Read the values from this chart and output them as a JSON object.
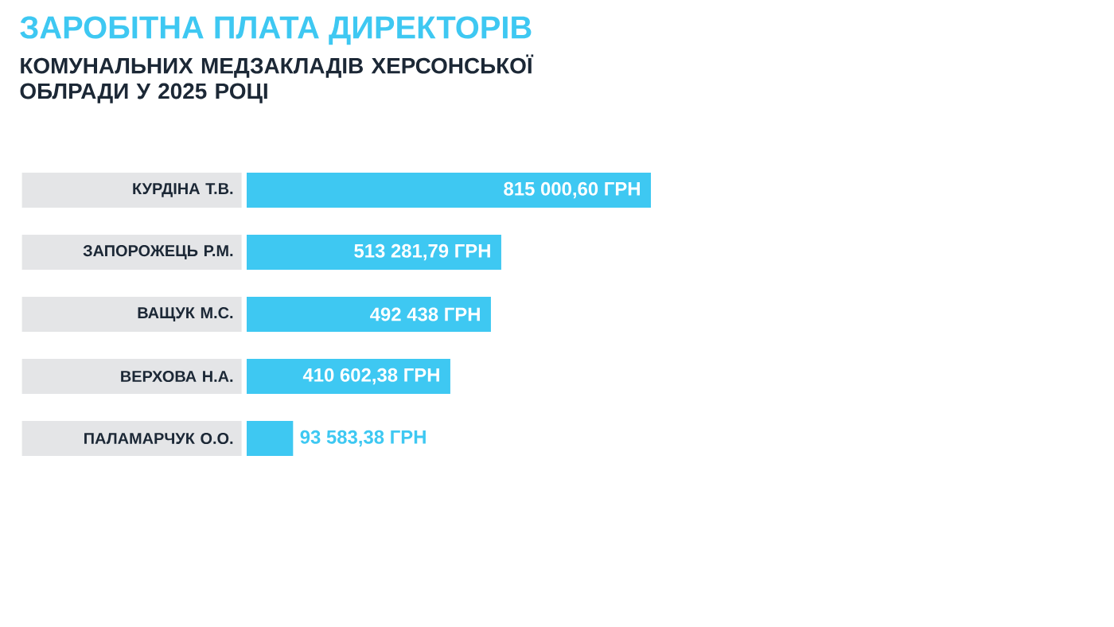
{
  "chart_data": {
    "type": "bar",
    "orientation": "horizontal",
    "title": "ЗАРОБІТНА ПЛАТА ДИРЕКТОРІВ",
    "subtitle": "КОМУНАЛЬНИХ МЕДЗАКЛАДІВ ХЕРСОНСЬКОЇ ОБЛРАДИ У 2025 РОЦІ",
    "color": "#3ec8f2",
    "categories": [
      "КУРДІНА Т.В.",
      "ЗАПОРОЖЕЦЬ Р.М.",
      "ВАЩУК М.С.",
      "ВЕРХОВА Н.А.",
      "ПАЛАМАРЧУК О.О."
    ],
    "values": [
      815000.6,
      513281.79,
      492438,
      410602.38,
      93583.38
    ],
    "value_labels": [
      "815 000,60 ГРН",
      "513 281,79 ГРН",
      "492 438 ГРН",
      "410 602,38 ГРН",
      "93 583,38 ГРН"
    ]
  }
}
